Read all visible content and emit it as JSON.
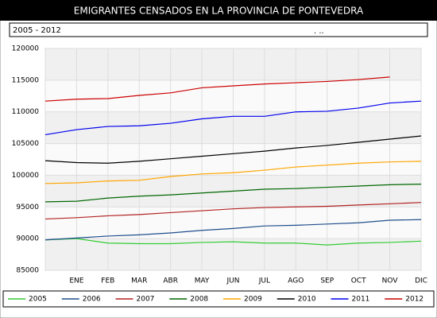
{
  "chart_data": {
    "type": "line",
    "title": "EMIGRANTES CENSADOS EN LA PROVINCIA DE PONTEVEDRA",
    "subtitle": "2005 - 2012",
    "note": ". ..",
    "categories": [
      null,
      "ENE",
      "FEB",
      "MAR",
      "ABR",
      "MAY",
      "JUN",
      "JUL",
      "AGO",
      "SEP",
      "OCT",
      "NOV",
      "DIC"
    ],
    "ylim": [
      85000,
      120000
    ],
    "yticks": [
      85000,
      90000,
      95000,
      100000,
      105000,
      110000,
      115000,
      120000
    ],
    "grid": true,
    "legend": "bottom",
    "series": [
      {
        "name": "2005",
        "color": "#33cc33",
        "values": [
          89800,
          90000,
          89300,
          89200,
          89200,
          89400,
          89500,
          89300,
          89300,
          89000,
          89300,
          89400,
          89600
        ]
      },
      {
        "name": "2006",
        "color": "#1f4e8c",
        "values": [
          89800,
          90100,
          90400,
          90600,
          90900,
          91300,
          91600,
          92000,
          92100,
          92300,
          92500,
          92900,
          93000
        ]
      },
      {
        "name": "2007",
        "color": "#b22222",
        "values": [
          93100,
          93300,
          93600,
          93800,
          94100,
          94400,
          94700,
          94900,
          95000,
          95100,
          95300,
          95500,
          95700
        ]
      },
      {
        "name": "2008",
        "color": "#006600",
        "values": [
          95800,
          95900,
          96400,
          96700,
          96900,
          97200,
          97500,
          97800,
          97900,
          98100,
          98300,
          98500,
          98600
        ]
      },
      {
        "name": "2009",
        "color": "#ffa500",
        "values": [
          98700,
          98800,
          99100,
          99200,
          99800,
          100200,
          100400,
          100800,
          101300,
          101600,
          101900,
          102100,
          102200
        ]
      },
      {
        "name": "2010",
        "color": "#000000",
        "values": [
          102300,
          102000,
          101900,
          102200,
          102600,
          103000,
          103400,
          103800,
          104300,
          104700,
          105200,
          105700,
          106200
        ]
      },
      {
        "name": "2011",
        "color": "#0000ee",
        "values": [
          106400,
          107200,
          107700,
          107800,
          108200,
          108900,
          109300,
          109300,
          110000,
          110100,
          110600,
          111400,
          111700
        ]
      },
      {
        "name": "2012",
        "color": "#cc0000",
        "values": [
          111700,
          112000,
          112100,
          112600,
          113000,
          113800,
          114100,
          114400,
          114600,
          114800,
          115100,
          115500,
          null
        ]
      }
    ]
  }
}
